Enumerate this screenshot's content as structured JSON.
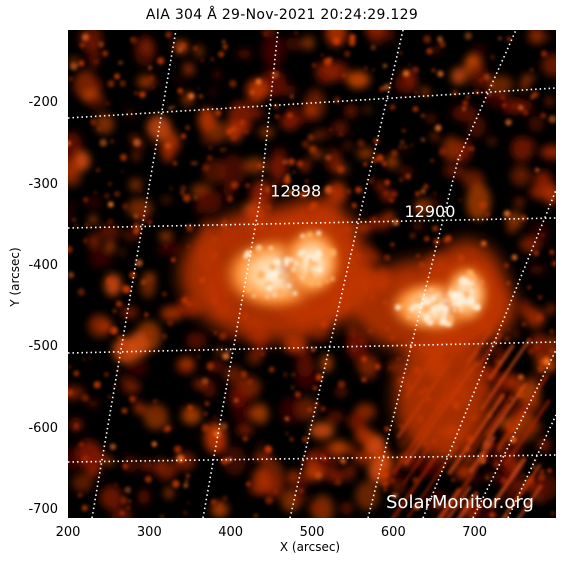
{
  "title": "AIA 304 Å 29-Nov-2021 20:24:29.129",
  "watermark": "SolarMonitor.org",
  "axes": {
    "xlabel": "X (arcsec)",
    "ylabel": "Y (arcsec)",
    "xlim": [
      200,
      800
    ],
    "ylim": [
      -710,
      -110
    ],
    "xticks": [
      "200",
      "300",
      "400",
      "500",
      "600",
      "700"
    ],
    "yticks": [
      "-200",
      "-300",
      "-400",
      "-500",
      "-600",
      "-700"
    ]
  },
  "regions": [
    {
      "label": "12898",
      "x": 480,
      "y": -315
    },
    {
      "label": "12900",
      "x": 645,
      "y": -340
    }
  ],
  "colors": {
    "background": "#000000",
    "emission": "#cc3300",
    "bright": "#ffe9c8",
    "grid": "#ffffff",
    "label": "#ffffff"
  }
}
